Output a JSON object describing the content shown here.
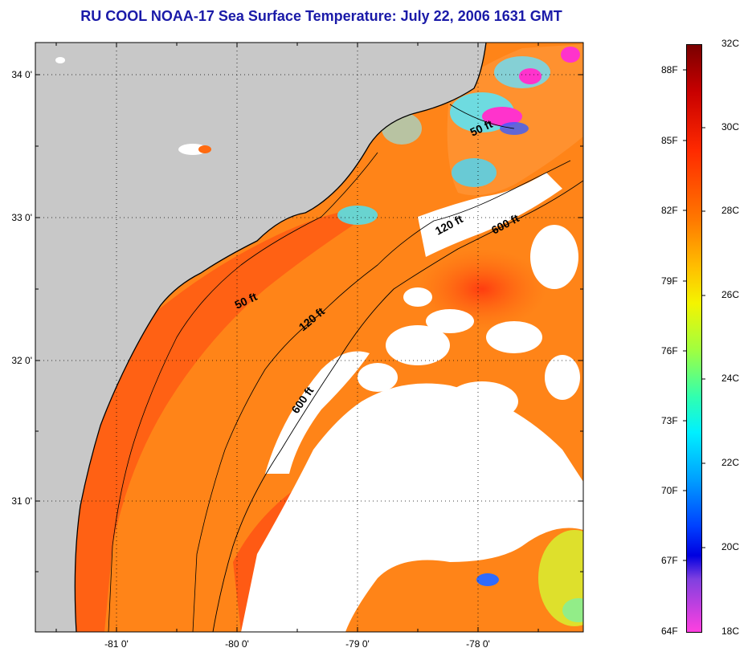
{
  "title": "RU COOL  NOAA-17  Sea Surface Temperature:  July 22, 2006 1631 GMT",
  "map": {
    "lat_labels": [
      "34 0'",
      "33 0'",
      "32 0'",
      "31 0'"
    ],
    "lon_labels": [
      "-81 0'",
      "-80 0'",
      "-79 0'",
      "-78 0'"
    ],
    "contours": [
      {
        "label": "50 ft"
      },
      {
        "label": "120 ft"
      },
      {
        "label": "600 ft"
      },
      {
        "label": "50 ft"
      },
      {
        "label": "120 ft"
      },
      {
        "label": "600 ft"
      }
    ],
    "colors": {
      "land": "#c8c8c8",
      "cloud": "#ffffff",
      "warm_sst": "#ff6a10",
      "mid_sst": "#ff9a20",
      "cool_sst": "#33e0ff",
      "cold_sst": "#ff33cc"
    }
  },
  "colorbar": {
    "fahrenheit": [
      "88F",
      "85F",
      "82F",
      "79F",
      "76F",
      "73F",
      "70F",
      "67F",
      "64F"
    ],
    "celsius": [
      "32C",
      "30C",
      "28C",
      "26C",
      "24C",
      "22C",
      "20C",
      "18C"
    ]
  }
}
